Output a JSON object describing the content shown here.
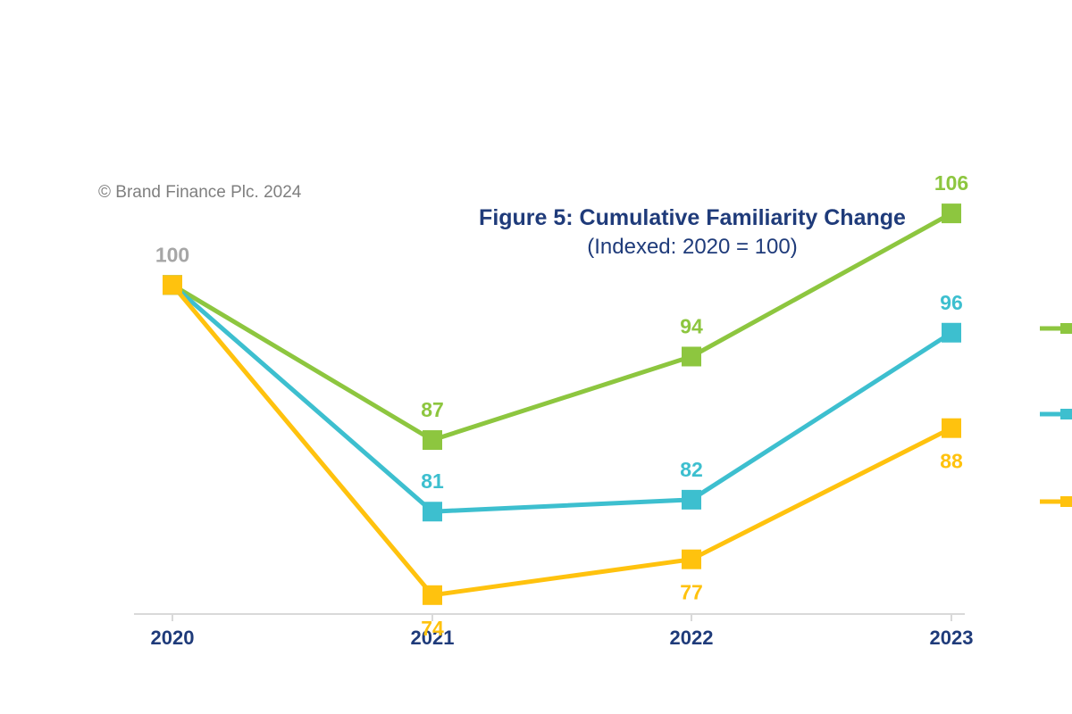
{
  "copyright": "© Brand Finance Plc. 2024",
  "colors": {
    "title": "#1f3b7a",
    "axis_labels": "#1f3b7a",
    "baseline_label": "#a6a6a6",
    "axis_line": "#d9d9d9",
    "green": "#8dc63f",
    "teal": "#3dbfcf",
    "yellow": "#ffc20e"
  },
  "chart_data": {
    "type": "line",
    "title": "Figure 5: Cumulative Familiarity Change",
    "subtitle": "(Indexed: 2020 = 100)",
    "xlabel": "",
    "ylabel": "",
    "x": [
      "2020",
      "2021",
      "2022",
      "2023"
    ],
    "ylim": [
      68,
      109
    ],
    "grid": false,
    "legend": "right (cropped, no text visible)",
    "marker": "square",
    "baseline_label": {
      "x": "2020",
      "value": "100"
    },
    "series": [
      {
        "color": "#8dc63f",
        "values": [
          100,
          87,
          94,
          106
        ],
        "labels": [
          "",
          "87",
          "94",
          "106"
        ],
        "label_position": [
          "none",
          "above",
          "above",
          "above"
        ]
      },
      {
        "color": "#3dbfcf",
        "values": [
          100,
          81,
          82,
          96
        ],
        "labels": [
          "",
          "81",
          "82",
          "96"
        ],
        "label_position": [
          "none",
          "above",
          "above",
          "above"
        ]
      },
      {
        "color": "#ffc20e",
        "values": [
          100,
          74,
          77,
          88
        ],
        "labels": [
          "",
          "74",
          "77",
          "88"
        ],
        "label_position": [
          "none",
          "below",
          "below",
          "below"
        ]
      }
    ]
  }
}
